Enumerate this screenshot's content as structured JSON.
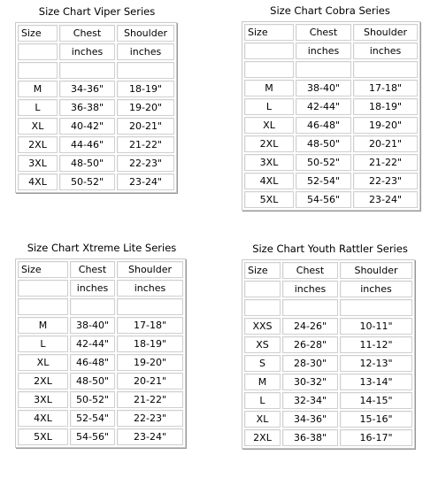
{
  "charts": [
    {
      "title": "Size Chart Viper Series",
      "header": [
        "Size",
        "Chest",
        "Shoulder"
      ],
      "units": [
        "",
        "inches",
        "inches"
      ],
      "rows": [
        [
          "M",
          "34-36\"",
          "18-19\""
        ],
        [
          "L",
          "36-38\"",
          "19-20\""
        ],
        [
          "XL",
          "40-42\"",
          "20-21\""
        ],
        [
          "2XL",
          "44-46\"",
          "21-22\""
        ],
        [
          "3XL",
          "48-50\"",
          "22-23\""
        ],
        [
          "4XL",
          "50-52\"",
          "23-24\""
        ]
      ]
    },
    {
      "title": "Size Chart Cobra Series",
      "header": [
        "Size",
        "Chest",
        "Shoulder"
      ],
      "units": [
        "",
        "inches",
        "inches"
      ],
      "rows": [
        [
          "M",
          "38-40\"",
          "17-18\""
        ],
        [
          "L",
          "42-44\"",
          "18-19\""
        ],
        [
          "XL",
          "46-48\"",
          "19-20\""
        ],
        [
          "2XL",
          "48-50\"",
          "20-21\""
        ],
        [
          "3XL",
          "50-52\"",
          "21-22\""
        ],
        [
          "4XL",
          "52-54\"",
          "22-23\""
        ],
        [
          "5XL",
          "54-56\"",
          "23-24\""
        ]
      ]
    },
    {
      "title": "Size Chart Xtreme Lite Series",
      "header": [
        "Size",
        "Chest",
        "Shoulder"
      ],
      "units": [
        "",
        "inches",
        "inches"
      ],
      "rows": [
        [
          "M",
          "38-40\"",
          "17-18\""
        ],
        [
          "L",
          "42-44\"",
          "18-19\""
        ],
        [
          "XL",
          "46-48\"",
          "19-20\""
        ],
        [
          "2XL",
          "48-50\"",
          "20-21\""
        ],
        [
          "3XL",
          "50-52\"",
          "21-22\""
        ],
        [
          "4XL",
          "52-54\"",
          "22-23\""
        ],
        [
          "5XL",
          "54-56\"",
          "23-24\""
        ]
      ]
    },
    {
      "title": "Size Chart Youth Rattler Series",
      "header": [
        "Size",
        "Chest",
        "Shoulder"
      ],
      "units": [
        "",
        "inches",
        "inches"
      ],
      "rows": [
        [
          "XXS",
          "24-26\"",
          "10-11\""
        ],
        [
          "XS",
          "26-28\"",
          "11-12\""
        ],
        [
          "S",
          "28-30\"",
          "12-13\""
        ],
        [
          "M",
          "30-32\"",
          "13-14\""
        ],
        [
          "L",
          "32-34\"",
          "14-15\""
        ],
        [
          "XL",
          "34-36\"",
          "15-16\""
        ],
        [
          "2XL",
          "36-38\"",
          "16-17\""
        ]
      ]
    }
  ]
}
